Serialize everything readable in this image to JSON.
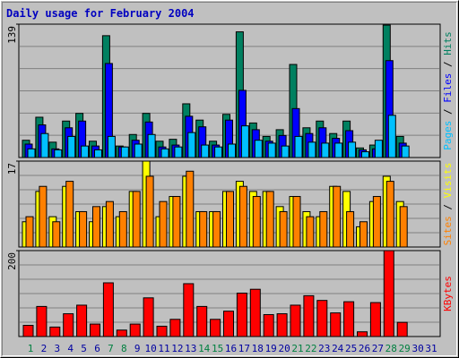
{
  "title": "Daily usage for February 2004",
  "legend_separator": "/",
  "chart_data": [
    {
      "type": "bar",
      "ylim": [
        0,
        139
      ],
      "yticks": [
        139
      ],
      "series": [
        {
          "name": "Hits",
          "color": "#008060",
          "values": [
            18,
            42,
            16,
            38,
            46,
            17,
            127,
            12,
            24,
            46,
            17,
            19,
            56,
            39,
            17,
            45,
            131,
            36,
            22,
            29,
            97,
            31,
            38,
            25,
            38,
            10,
            13,
            138,
            22,
            null,
            null
          ]
        },
        {
          "name": "Files",
          "color": "#0000ff",
          "values": [
            14,
            34,
            9,
            31,
            38,
            12,
            98,
            11,
            18,
            37,
            11,
            13,
            43,
            32,
            13,
            39,
            70,
            29,
            17,
            23,
            51,
            25,
            31,
            20,
            28,
            8,
            9,
            101,
            15,
            null,
            null
          ]
        },
        {
          "name": "Pages",
          "color": "#00c0ff",
          "values": [
            9,
            25,
            8,
            22,
            12,
            8,
            22,
            11,
            14,
            24,
            9,
            11,
            26,
            13,
            11,
            14,
            33,
            18,
            15,
            12,
            22,
            16,
            15,
            15,
            16,
            6,
            18,
            44,
            12,
            null,
            null
          ]
        }
      ]
    },
    {
      "type": "bar",
      "ylim": [
        0,
        17
      ],
      "yticks": [
        17
      ],
      "series": [
        {
          "name": "Visits",
          "color": "#ffff00",
          "values": [
            5,
            11,
            6,
            12,
            7,
            5,
            8,
            6,
            11,
            17,
            6,
            10,
            14,
            7,
            7,
            11,
            13,
            11,
            11,
            8,
            10,
            7,
            6,
            12,
            11,
            4,
            9,
            14,
            9,
            null,
            null
          ]
        },
        {
          "name": "Sites",
          "color": "#ff8000",
          "values": [
            6,
            12,
            5,
            13,
            7,
            8,
            9,
            7,
            11,
            14,
            9,
            10,
            15,
            7,
            7,
            11,
            12,
            10,
            11,
            7,
            10,
            6,
            7,
            12,
            7,
            5,
            10,
            13,
            8,
            null,
            null
          ]
        }
      ]
    },
    {
      "type": "bar",
      "ylim": [
        0,
        200
      ],
      "yticks": [
        200
      ],
      "categories": [
        "1",
        "2",
        "3",
        "4",
        "5",
        "6",
        "7",
        "8",
        "9",
        "10",
        "11",
        "12",
        "13",
        "14",
        "15",
        "16",
        "17",
        "18",
        "19",
        "20",
        "21",
        "22",
        "23",
        "24",
        "25",
        "26",
        "27",
        "28",
        "29",
        "30",
        "31"
      ],
      "category_colors": [
        "#008040",
        "#0000a0",
        "#0000a0",
        "#0000a0",
        "#0000a0",
        "#0000a0",
        "#008040",
        "#008040",
        "#0000a0",
        "#0000a0",
        "#0000a0",
        "#0000a0",
        "#0000a0",
        "#008040",
        "#008040",
        "#0000a0",
        "#0000a0",
        "#0000a0",
        "#0000a0",
        "#0000a0",
        "#008040",
        "#008040",
        "#0000a0",
        "#0000a0",
        "#0000a0",
        "#0000a0",
        "#0000a0",
        "#008040",
        "#008040",
        "#0000a0",
        "#0000a0"
      ],
      "series": [
        {
          "name": "KBytes",
          "color": "#ff0000",
          "values": [
            26,
            70,
            22,
            53,
            73,
            29,
            125,
            15,
            29,
            90,
            24,
            40,
            123,
            70,
            40,
            59,
            101,
            110,
            51,
            53,
            73,
            95,
            84,
            55,
            81,
            11,
            79,
            200,
            33,
            null,
            null
          ]
        }
      ]
    }
  ]
}
